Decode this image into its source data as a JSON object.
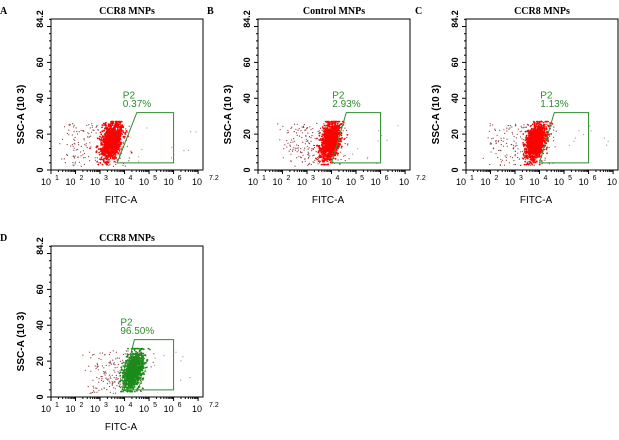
{
  "chart_data": [
    {
      "type": "scatter",
      "panel": "A",
      "title": "CCR8 MNPs",
      "xlabel": "FITC-A",
      "ylabel": "SSC-A (10 3)",
      "xscale": "log",
      "xlim": [
        1,
        7.2
      ],
      "ylim": [
        0,
        84.2
      ],
      "xticks": [
        "10 1",
        "10 2",
        "10 3",
        "10 4",
        "10 5",
        "10 6",
        "10 7.2"
      ],
      "yticks": [
        "0",
        "20",
        "40",
        "60",
        "84.2"
      ],
      "gate": {
        "name": "P2",
        "percent": "0.37%",
        "vertices_log_x_y": [
          [
            3.7,
            4
          ],
          [
            4.5,
            32
          ],
          [
            6.0,
            32
          ],
          [
            6.0,
            4
          ]
        ]
      },
      "population": {
        "color": "#ff0000",
        "center_log_x": 3.45,
        "center_y": 16,
        "count": 1400
      }
    },
    {
      "type": "scatter",
      "panel": "B",
      "title": "Control MNPs",
      "xlabel": "FITC-A",
      "ylabel": "SSC-A (10 3)",
      "xscale": "log",
      "xlim": [
        1,
        7.2
      ],
      "ylim": [
        0,
        84.2
      ],
      "xticks": [
        "10 1",
        "10 2",
        "10 3",
        "10 4",
        "10 5",
        "10 6",
        "10 7.2"
      ],
      "yticks": [
        "0",
        "20",
        "40",
        "60",
        "84.2"
      ],
      "gate": {
        "name": "P2",
        "percent": "2.93%",
        "vertices_log_x_y": [
          [
            4.0,
            4
          ],
          [
            4.6,
            32
          ],
          [
            6.0,
            32
          ],
          [
            6.0,
            4
          ]
        ]
      },
      "population": {
        "color": "#ff0000",
        "center_log_x": 3.95,
        "center_y": 16,
        "count": 1400
      }
    },
    {
      "type": "scatter",
      "panel": "C",
      "title": "CCR8 MNPs",
      "xlabel": "FITC-A",
      "ylabel": "SSC-A (10 3)",
      "xscale": "log",
      "xlim": [
        1,
        7.2
      ],
      "ylim": [
        0,
        84.2
      ],
      "xticks": [
        "10 1",
        "10 2",
        "10 3",
        "10 4",
        "10 5",
        "10 6",
        "10 7.2"
      ],
      "yticks": [
        "0",
        "20",
        "40",
        "60",
        "84.2"
      ],
      "gate": {
        "name": "P2",
        "percent": "1.13%",
        "vertices_log_x_y": [
          [
            4.0,
            4
          ],
          [
            4.6,
            32
          ],
          [
            6.0,
            32
          ],
          [
            6.0,
            4
          ]
        ]
      },
      "population": {
        "color": "#ff0000",
        "center_log_x": 3.85,
        "center_y": 16,
        "count": 1400
      }
    },
    {
      "type": "scatter",
      "panel": "D",
      "title": "CCR8 MNPs",
      "xlabel": "FITC-A",
      "ylabel": "SSC-A (10 3)",
      "xscale": "log",
      "xlim": [
        1,
        7.2
      ],
      "ylim": [
        0,
        84.2
      ],
      "xticks": [
        "10 1",
        "10 2",
        "10 3",
        "10 4",
        "10 5",
        "10 6",
        "10 7.2"
      ],
      "yticks": [
        "0",
        "20",
        "40",
        "60",
        "84.2"
      ],
      "gate": {
        "name": "P2",
        "percent": "96.50%",
        "vertices_log_x_y": [
          [
            3.9,
            4
          ],
          [
            4.4,
            32
          ],
          [
            6.0,
            32
          ],
          [
            6.0,
            4
          ]
        ]
      },
      "population": {
        "color": "#1a8c1a",
        "center_log_x": 4.35,
        "center_y": 15,
        "count": 1400
      }
    }
  ],
  "gate_color": "#2e8b2e"
}
